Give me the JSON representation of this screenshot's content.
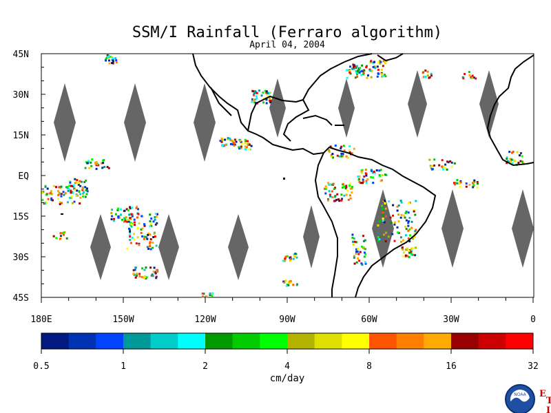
{
  "title": "SSM/I Rainfall (Ferraro algorithm)",
  "subtitle": "April 04, 2004",
  "lat_labels": [
    "45N",
    "30N",
    "15N",
    "EQ",
    "15S",
    "30S",
    "45S"
  ],
  "lon_labels": [
    "180E",
    "150W",
    "120W",
    "90W",
    "60W",
    "30W",
    "0"
  ],
  "colorbar": {
    "colors": [
      "#001a80",
      "#0033b3",
      "#0044ff",
      "#009999",
      "#00cccc",
      "#00ffff",
      "#009900",
      "#00cc00",
      "#00ff00",
      "#b3b300",
      "#e0e000",
      "#ffff00",
      "#ff5500",
      "#ff8000",
      "#ffaa00",
      "#990000",
      "#cc0000",
      "#ff0000"
    ],
    "tick_labels": [
      "0.5",
      "1",
      "2",
      "4",
      "8",
      "16",
      "32"
    ],
    "unit": "cm/day"
  },
  "logo": {
    "inner_text": "NOAA",
    "side_letters": [
      "E",
      "T",
      "I"
    ]
  },
  "colors": {
    "land_outline": "#000000",
    "no_data_gap": "#666666",
    "background": "#ffffff"
  }
}
